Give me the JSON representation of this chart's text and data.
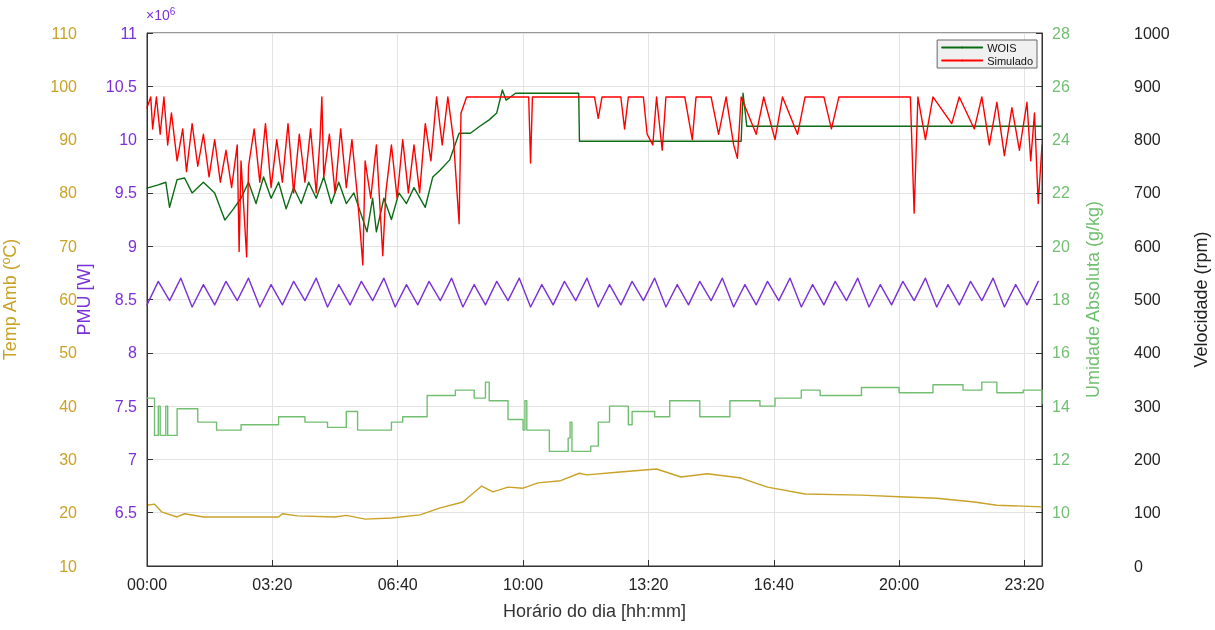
{
  "chart_data": [
    {
      "type": "line",
      "xlabel": "Horário do dia [hh:mm]",
      "ylabel": "Temp Amb (ºC)",
      "y2label": "Velocidade (rpm)",
      "xlim": [
        0,
        23.8
      ],
      "xticks": [
        {
          "value": 0,
          "label": "00:00"
        },
        {
          "value": 3.3333,
          "label": "03:20"
        },
        {
          "value": 6.6667,
          "label": "06:40"
        },
        {
          "value": 10,
          "label": "10:00"
        },
        {
          "value": 13.3333,
          "label": "13:20"
        },
        {
          "value": 16.6667,
          "label": "16:40"
        },
        {
          "value": 20,
          "label": "20:00"
        },
        {
          "value": 23.3333,
          "label": "23:20"
        }
      ],
      "ylim": [
        10,
        110
      ],
      "yticks": [
        10,
        20,
        30,
        40,
        50,
        60,
        70,
        80,
        90,
        100,
        110
      ],
      "y2lim": [
        0,
        1000
      ],
      "y2ticks": [
        0,
        100,
        200,
        300,
        400,
        500,
        600,
        700,
        800,
        900,
        1000
      ],
      "grid": true,
      "legend": "top right",
      "marker": "none",
      "line_style": "solid",
      "series": [
        {
          "axis": "y",
          "color": "#c9a227",
          "x": [
            0,
            0.2,
            0.4,
            0.8,
            1.0,
            1.5,
            3.5,
            3.6,
            4.0,
            5.0,
            5.3,
            5.8,
            6.5,
            7.26,
            7.8,
            8.4,
            8.9,
            9.2,
            9.6,
            10.0,
            10.4,
            11.0,
            11.5,
            11.7,
            12.5,
            13.55,
            14.2,
            14.9,
            15.8,
            16.5,
            17.5,
            19.0,
            20.0,
            21.0,
            22.0,
            22.6,
            23.8
          ],
          "values": [
            21.4,
            21.6,
            20.1,
            19.2,
            19.8,
            19.2,
            19.2,
            19.8,
            19.4,
            19.2,
            19.5,
            18.8,
            19.0,
            19.6,
            20.9,
            22.0,
            25.0,
            23.9,
            24.8,
            24.6,
            25.6,
            26.0,
            27.4,
            27.1,
            27.6,
            28.2,
            26.7,
            27.3,
            26.5,
            24.8,
            23.5,
            23.3,
            23.0,
            22.7,
            22.0,
            21.4,
            21.1
          ]
        },
        {
          "axis": "y2",
          "name": "WOIS",
          "color": "#0b6b14",
          "x": [
            0,
            0.3,
            0.5,
            0.6,
            0.8,
            1.0,
            1.2,
            1.5,
            1.8,
            2.07,
            2.3,
            2.5,
            2.7,
            2.9,
            3.1,
            3.3,
            3.5,
            3.7,
            3.9,
            4.1,
            4.3,
            4.5,
            4.7,
            4.9,
            5.1,
            5.3,
            5.5,
            5.85,
            6.0,
            6.1,
            6.3,
            6.5,
            6.7,
            6.9,
            7.1,
            7.4,
            7.6,
            7.8,
            8.05,
            8.3,
            8.6,
            8.85,
            9.1,
            9.3,
            9.45,
            9.55,
            9.8,
            11.48,
            11.5,
            15.8,
            15.85,
            15.95,
            23.8
          ],
          "values": [
            709,
            715,
            720,
            673,
            725,
            728,
            700,
            720,
            700,
            649,
            670,
            690,
            720,
            680,
            730,
            690,
            720,
            670,
            710,
            680,
            720,
            690,
            730,
            680,
            720,
            680,
            700,
            627,
            690,
            627,
            690,
            650,
            700,
            680,
            710,
            673,
            730,
            743,
            762,
            812,
            812,
            825,
            837,
            850,
            893,
            874,
            887,
            887,
            797,
            797,
            887,
            825,
            825
          ]
        },
        {
          "axis": "y2",
          "name": "Simulado",
          "color": "#ff0000",
          "x": [
            0,
            0.1,
            0.15,
            0.25,
            0.35,
            0.45,
            0.55,
            0.65,
            0.8,
            0.95,
            1.05,
            1.2,
            1.35,
            1.5,
            1.65,
            1.8,
            1.95,
            2.1,
            2.25,
            2.4,
            2.45,
            2.5,
            2.65,
            2.7,
            2.85,
            3.0,
            3.15,
            3.3,
            3.45,
            3.6,
            3.75,
            3.9,
            4.05,
            4.2,
            4.35,
            4.5,
            4.6,
            4.65,
            4.7,
            4.85,
            5.0,
            5.15,
            5.3,
            5.45,
            5.6,
            5.74,
            5.8,
            5.95,
            6.1,
            6.27,
            6.35,
            6.5,
            6.65,
            6.8,
            6.95,
            7.1,
            7.25,
            7.4,
            7.55,
            7.7,
            7.85,
            8.0,
            8.15,
            8.3,
            8.35,
            8.5,
            8.6,
            10.15,
            10.2,
            10.25,
            11.9,
            12.0,
            12.1,
            12.6,
            12.7,
            12.8,
            13.2,
            13.3,
            13.45,
            13.55,
            13.7,
            13.8,
            14.3,
            14.5,
            14.6,
            15.0,
            15.2,
            15.4,
            15.6,
            15.7,
            15.8,
            16.2,
            16.4,
            16.7,
            16.9,
            17.3,
            17.5,
            18.0,
            18.2,
            18.4,
            20.3,
            20.4,
            20.5,
            20.7,
            20.9,
            21.4,
            21.6,
            22.0,
            22.2,
            22.4,
            22.6,
            22.8,
            23.0,
            23.2,
            23.4,
            23.5,
            23.6,
            23.7,
            23.8
          ],
          "values": [
            860,
            880,
            820,
            880,
            810,
            880,
            790,
            850,
            760,
            820,
            740,
            830,
            750,
            810,
            730,
            800,
            720,
            780,
            710,
            790,
            590,
            760,
            580,
            750,
            820,
            720,
            830,
            710,
            800,
            720,
            830,
            700,
            810,
            720,
            820,
            700,
            800,
            880,
            730,
            810,
            700,
            820,
            710,
            800,
            690,
            565,
            760,
            690,
            790,
            582,
            700,
            790,
            690,
            800,
            700,
            790,
            700,
            830,
            760,
            880,
            790,
            880,
            800,
            642,
            850,
            880,
            880,
            880,
            756,
            880,
            880,
            840,
            880,
            880,
            820,
            880,
            880,
            810,
            790,
            880,
            780,
            880,
            880,
            800,
            880,
            880,
            810,
            880,
            790,
            765,
            880,
            810,
            880,
            800,
            880,
            810,
            880,
            880,
            820,
            880,
            880,
            662,
            880,
            800,
            880,
            830,
            880,
            820,
            880,
            790,
            870,
            770,
            860,
            780,
            870,
            760,
            850,
            680,
            790
          ]
        }
      ]
    },
    {
      "type": "line",
      "ylabel": "PMU [W]",
      "y2label": "Umidade Absoluta (g/kg)",
      "annotations": [
        "×10$^{6}$"
      ],
      "xlim": [
        0,
        23.8
      ],
      "tick_labels": "y",
      "ylim": [
        6,
        11
      ],
      "yticks": [
        6.5,
        7,
        7.5,
        8,
        8.5,
        9,
        9.5,
        10,
        10.5,
        11
      ],
      "y2lim": [
        8,
        28
      ],
      "y2ticks": [
        10,
        12,
        14,
        16,
        18,
        20,
        22,
        24,
        26,
        28
      ],
      "marker": "none",
      "line_style": "solid",
      "series": [
        {
          "axis": "y",
          "color": "#7b30d8",
          "x": [
            0,
            0.3,
            0.6,
            0.9,
            1.2,
            1.5,
            1.8,
            2.1,
            2.4,
            2.7,
            3.0,
            3.3,
            3.6,
            3.9,
            4.2,
            4.5,
            4.8,
            5.1,
            5.4,
            5.7,
            6.0,
            6.3,
            6.6,
            6.9,
            7.2,
            7.5,
            7.8,
            8.1,
            8.4,
            8.7,
            9.0,
            9.3,
            9.6,
            9.9,
            10.2,
            10.5,
            10.8,
            11.1,
            11.4,
            11.7,
            12.0,
            12.3,
            12.6,
            12.9,
            13.2,
            13.5,
            13.8,
            14.1,
            14.4,
            14.7,
            15.0,
            15.3,
            15.6,
            15.9,
            16.2,
            16.5,
            16.8,
            17.1,
            17.4,
            17.7,
            18.0,
            18.3,
            18.6,
            18.9,
            19.2,
            19.5,
            19.8,
            20.1,
            20.4,
            20.7,
            21.0,
            21.3,
            21.6,
            21.9,
            22.2,
            22.5,
            22.8,
            23.1,
            23.4,
            23.7
          ],
          "values": [
            8.45,
            8.67,
            8.49,
            8.7,
            8.43,
            8.64,
            8.45,
            8.67,
            8.49,
            8.7,
            8.43,
            8.64,
            8.45,
            8.67,
            8.49,
            8.7,
            8.43,
            8.64,
            8.45,
            8.67,
            8.49,
            8.7,
            8.43,
            8.64,
            8.45,
            8.67,
            8.49,
            8.7,
            8.43,
            8.64,
            8.45,
            8.67,
            8.49,
            8.7,
            8.43,
            8.64,
            8.45,
            8.67,
            8.49,
            8.7,
            8.43,
            8.64,
            8.45,
            8.67,
            8.49,
            8.7,
            8.43,
            8.64,
            8.45,
            8.67,
            8.49,
            8.7,
            8.43,
            8.64,
            8.45,
            8.67,
            8.49,
            8.7,
            8.43,
            8.64,
            8.45,
            8.67,
            8.49,
            8.7,
            8.43,
            8.64,
            8.45,
            8.67,
            8.49,
            8.7,
            8.43,
            8.64,
            8.45,
            8.67,
            8.49,
            8.7,
            8.43,
            8.64,
            8.45,
            8.67
          ]
        },
        {
          "axis": "y2",
          "type": "step",
          "color": "#72bf72",
          "x": [
            0,
            0.2,
            0.3,
            0.35,
            0.5,
            0.55,
            0.8,
            1.35,
            1.85,
            2.5,
            3.5,
            4.2,
            4.8,
            5.3,
            5.6,
            6.5,
            6.8,
            7.45,
            8.2,
            8.7,
            9.0,
            9.1,
            9.6,
            10.0,
            10.05,
            10.1,
            10.7,
            11.2,
            11.25,
            11.3,
            11.5,
            11.8,
            12.0,
            12.3,
            12.8,
            12.9,
            13.5,
            13.9,
            14.7,
            15.5,
            16.3,
            16.7,
            17.4,
            17.9,
            19.0,
            19.5,
            20.0,
            20.9,
            21.7,
            22.2,
            22.6,
            23.3,
            23.8
          ],
          "values": [
            14.3,
            12.9,
            14.0,
            12.9,
            14.0,
            12.9,
            13.9,
            13.4,
            13.1,
            13.3,
            13.6,
            13.4,
            13.2,
            13.8,
            13.1,
            13.4,
            13.6,
            14.4,
            14.6,
            14.3,
            14.9,
            14.2,
            13.5,
            13.1,
            14.2,
            13.1,
            12.3,
            12.8,
            13.4,
            12.3,
            12.3,
            12.5,
            13.4,
            14.0,
            13.3,
            13.8,
            13.6,
            14.2,
            13.6,
            14.2,
            14.0,
            14.3,
            14.6,
            14.4,
            14.7,
            14.7,
            14.5,
            14.8,
            14.6,
            14.9,
            14.5,
            14.6,
            14.1
          ]
        }
      ]
    }
  ]
}
